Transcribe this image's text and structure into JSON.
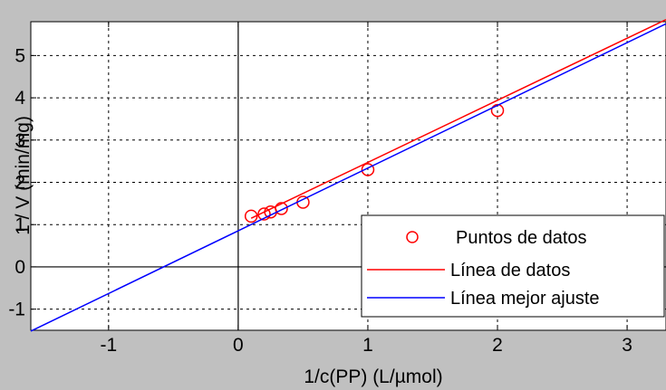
{
  "chart_data": {
    "type": "line",
    "title": "",
    "xlabel": "1/c(PP) (L/µmol)",
    "ylabel": "1 / V (min/mg)",
    "xlim": [
      -1.6,
      3.3
    ],
    "ylim": [
      -1.5,
      5.8
    ],
    "xticks": [
      -1,
      0,
      1,
      2,
      3
    ],
    "yticks": [
      -1,
      0,
      1,
      2,
      3,
      4,
      5
    ],
    "grid": true,
    "grid_style": "dotted",
    "legend_position": "bottom-right",
    "series": [
      {
        "name": "Puntos de datos",
        "kind": "markers",
        "marker": "circle",
        "color": "#ff0000",
        "x": [
          0.1,
          0.2,
          0.25,
          0.333,
          0.5,
          1.0,
          2.0
        ],
        "y": [
          1.2,
          1.25,
          1.3,
          1.38,
          1.53,
          2.3,
          3.7
        ]
      },
      {
        "name": "Línea de datos",
        "kind": "line",
        "color": "#ff0000",
        "x": [
          0.1,
          3.3
        ],
        "y": [
          1.15,
          5.85
        ]
      },
      {
        "name": "Línea mejor ajuste",
        "kind": "line",
        "color": "#0000ff",
        "x": [
          -1.6,
          3.3
        ],
        "y": [
          -1.52,
          5.75
        ]
      }
    ]
  }
}
